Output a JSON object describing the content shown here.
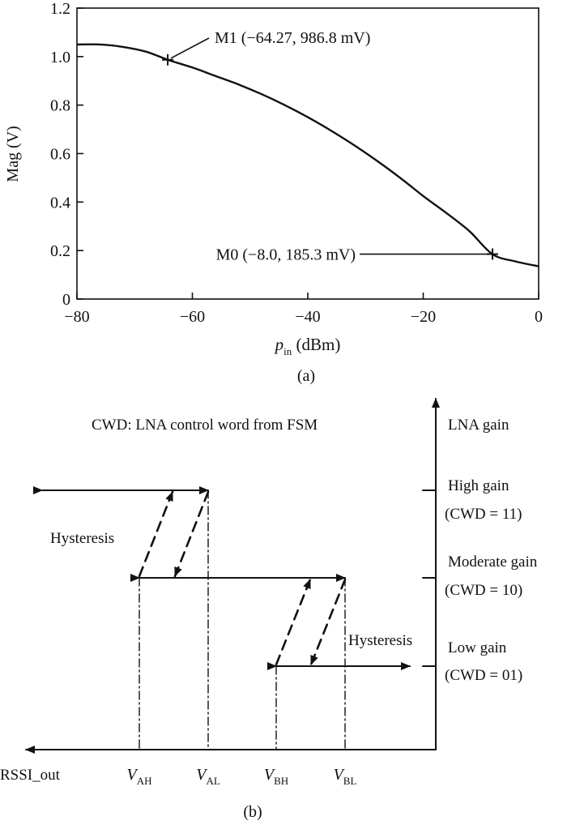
{
  "chart_data": [
    {
      "type": "line",
      "panel_label": "(a)",
      "ylabel": "Mag (V)",
      "xlabel": {
        "main": "p",
        "sub": "in",
        "unit": " (dBm)"
      },
      "xlim": [
        -80,
        0
      ],
      "ylim": [
        0,
        1.2
      ],
      "xticks": [
        -80,
        -60,
        -40,
        -20,
        0
      ],
      "xtick_labels": [
        "−80",
        "−60",
        "−40",
        "−20",
        "0"
      ],
      "yticks": [
        0,
        0.2,
        0.4,
        0.6,
        0.8,
        1.0,
        1.2
      ],
      "ytick_labels": [
        "0",
        "0.2",
        "0.4",
        "0.6",
        "0.8",
        "1.0",
        "1.2"
      ],
      "grid": false,
      "series": [
        {
          "x": [
            -80,
            -76,
            -72,
            -68,
            -64.27,
            -60,
            -56,
            -52,
            -48,
            -44,
            -40,
            -36,
            -32,
            -28,
            -24,
            -20,
            -16,
            -12,
            -8,
            -4,
            0
          ],
          "y": [
            1.05,
            1.05,
            1.04,
            1.02,
            0.987,
            0.955,
            0.92,
            0.885,
            0.845,
            0.8,
            0.75,
            0.695,
            0.635,
            0.57,
            0.5,
            0.425,
            0.355,
            0.28,
            0.185,
            0.155,
            0.135
          ]
        }
      ],
      "markers": [
        {
          "name": "M1",
          "x": -64.27,
          "y": 0.9868,
          "label": "M1 (−64.27, 986.8 mV)"
        },
        {
          "name": "M0",
          "x": -8.0,
          "y": 0.1853,
          "label": "M0 (−8.0, 185.3 mV)"
        }
      ]
    }
  ],
  "diagram": {
    "panel_label": "(b)",
    "caption": "CWD: LNA control word from FSM",
    "x_axis_label": "RSSI_out",
    "y_axis_label": "LNA gain",
    "thresholds": [
      {
        "main": "V",
        "sub": "AH"
      },
      {
        "main": "V",
        "sub": "AL"
      },
      {
        "main": "V",
        "sub": "BH"
      },
      {
        "main": "V",
        "sub": "BL"
      }
    ],
    "gain_levels": [
      {
        "name": "High gain",
        "cwd": "(CWD = 11)"
      },
      {
        "name": "Moderate gain",
        "cwd": "(CWD = 10)"
      },
      {
        "name": "Low gain",
        "cwd": "(CWD = 01)"
      }
    ],
    "hysteresis_label_1": "Hysteresis",
    "hysteresis_label_2": "Hysteresis"
  }
}
